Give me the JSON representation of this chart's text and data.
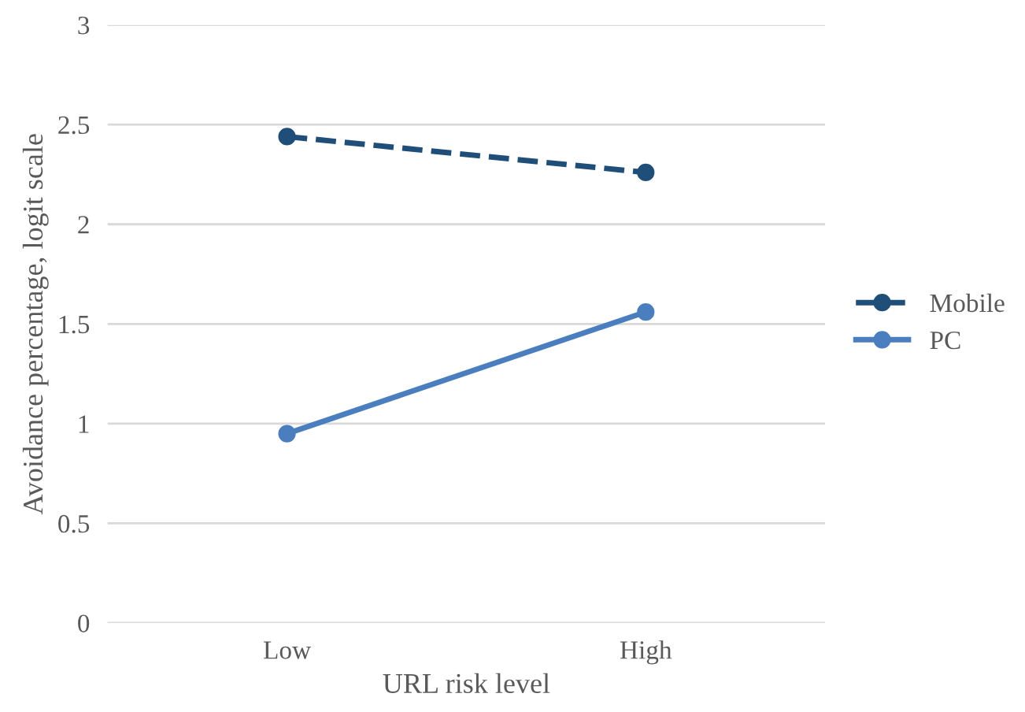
{
  "chart_data": {
    "type": "line",
    "xlabel": "URL risk level",
    "ylabel": "Avoidance percentage, logit scale",
    "categories": [
      "Low",
      "High"
    ],
    "series": [
      {
        "name": "Mobile",
        "color": "#1f4e79",
        "values": [
          2.44,
          2.26
        ],
        "line_style": "dashed"
      },
      {
        "name": "PC",
        "color": "#4a7ebf",
        "values": [
          0.95,
          1.56
        ],
        "line_style": "solid"
      }
    ],
    "ylim": [
      0,
      3
    ],
    "yticks": [
      0,
      0.5,
      1,
      1.5,
      2,
      2.5,
      3
    ],
    "grid": "y",
    "legend": "right",
    "marker": "circle"
  }
}
